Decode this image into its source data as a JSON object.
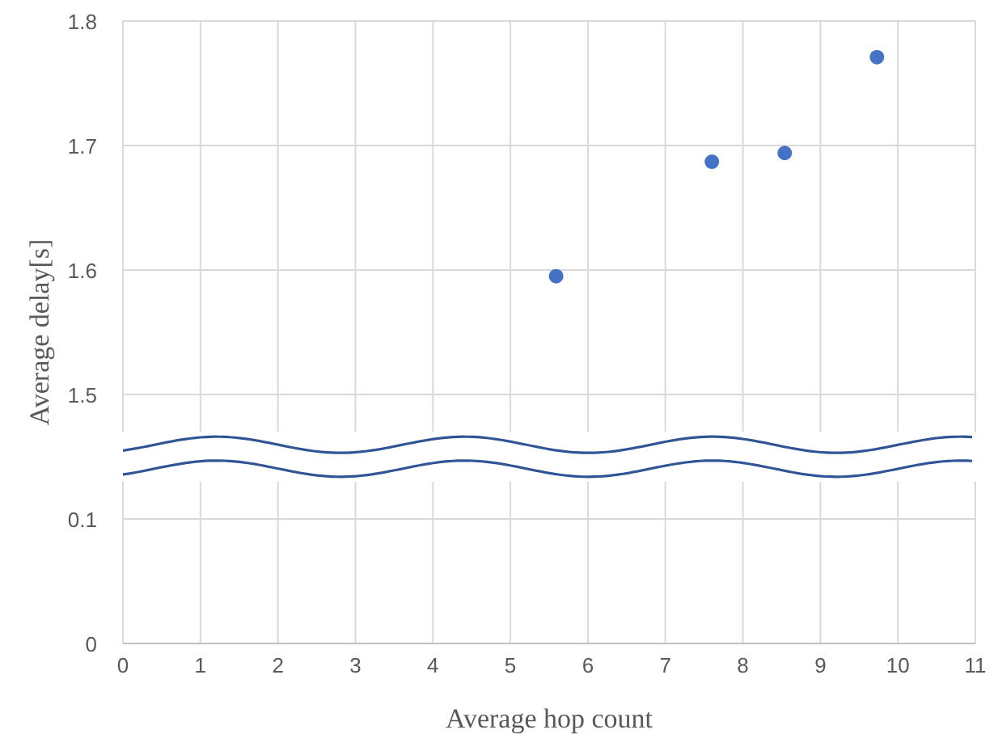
{
  "chart_data": [
    {
      "type": "scatter",
      "ylabel": "Average delay[s]",
      "xlim": [
        0,
        11
      ],
      "xticks": [
        0,
        1,
        2,
        3,
        4,
        5,
        6,
        7,
        8,
        9,
        10,
        11
      ],
      "ylim": [
        1.47,
        1.8
      ],
      "yticks": [
        1.5,
        1.6,
        1.7,
        1.8
      ],
      "tick_labels": "y",
      "grid": true,
      "marker": "circle",
      "series": [
        {
          "color": "#4472c4",
          "x": [
            5.59,
            7.6,
            8.54,
            9.73
          ],
          "values": [
            1.595,
            1.687,
            1.694,
            1.771
          ]
        }
      ]
    },
    {
      "type": "scatter",
      "xlabel": "Average hop count",
      "xlim": [
        0,
        11
      ],
      "xticks": [
        0,
        1,
        2,
        3,
        4,
        5,
        6,
        7,
        8,
        9,
        10,
        11
      ],
      "ylim": [
        0,
        0.13
      ],
      "yticks": [
        0,
        0.1
      ],
      "grid": true
    }
  ]
}
